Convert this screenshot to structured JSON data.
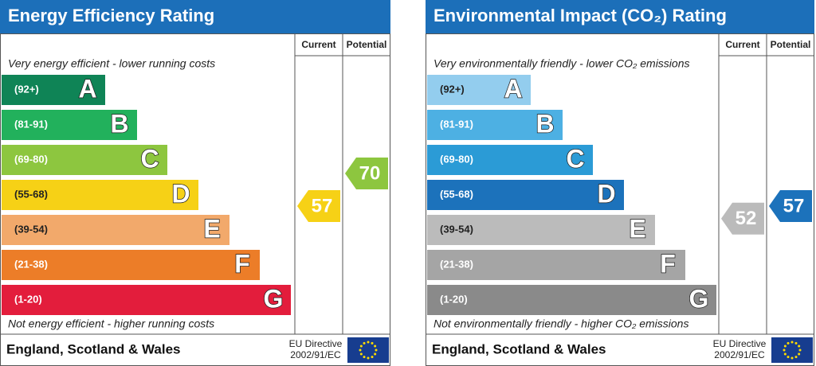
{
  "panels": [
    {
      "title": "Energy Efficiency Rating",
      "current_header": "Current",
      "potential_header": "Potential",
      "top_note": "Very energy efficient - lower running costs",
      "bottom_note": "Not energy efficient - higher running costs",
      "bands": [
        {
          "range": "(92+)",
          "letter": "A",
          "color": "#0f8456"
        },
        {
          "range": "(81-91)",
          "letter": "B",
          "color": "#22b15c"
        },
        {
          "range": "(69-80)",
          "letter": "C",
          "color": "#8dc63f"
        },
        {
          "range": "(55-68)",
          "letter": "D",
          "color": "#f6d116"
        },
        {
          "range": "(39-54)",
          "letter": "E",
          "color": "#f2a96b"
        },
        {
          "range": "(21-38)",
          "letter": "F",
          "color": "#ec7d28"
        },
        {
          "range": "(1-20)",
          "letter": "G",
          "color": "#e31d3c"
        }
      ],
      "current": {
        "value": 57,
        "color": "#f6d116"
      },
      "potential": {
        "value": 70,
        "color": "#8dc63f"
      },
      "footer": {
        "region": "England, Scotland & Wales",
        "directive": [
          "EU Directive",
          "2002/91/EC"
        ]
      }
    },
    {
      "title": "Environmental Impact (CO₂) Rating",
      "current_header": "Current",
      "potential_header": "Potential",
      "top_note": "Very environmentally friendly - lower CO₂ emissions",
      "bottom_note": "Not environmentally friendly - higher CO₂ emissions",
      "bands": [
        {
          "range": "(92+)",
          "letter": "A",
          "color": "#93cdee"
        },
        {
          "range": "(81-91)",
          "letter": "B",
          "color": "#4db0e3"
        },
        {
          "range": "(69-80)",
          "letter": "C",
          "color": "#2b9bd6"
        },
        {
          "range": "(55-68)",
          "letter": "D",
          "color": "#1c72bb"
        },
        {
          "range": "(39-54)",
          "letter": "E",
          "color": "#bbbbbb"
        },
        {
          "range": "(21-38)",
          "letter": "F",
          "color": "#a5a5a5"
        },
        {
          "range": "(1-20)",
          "letter": "G",
          "color": "#8a8a8a"
        }
      ],
      "current": {
        "value": 52,
        "color": "#bbbbbb"
      },
      "potential": {
        "value": 57,
        "color": "#1c72bb"
      },
      "footer": {
        "region": "England, Scotland & Wales",
        "directive": [
          "EU Directive",
          "2002/91/EC"
        ]
      }
    }
  ]
}
